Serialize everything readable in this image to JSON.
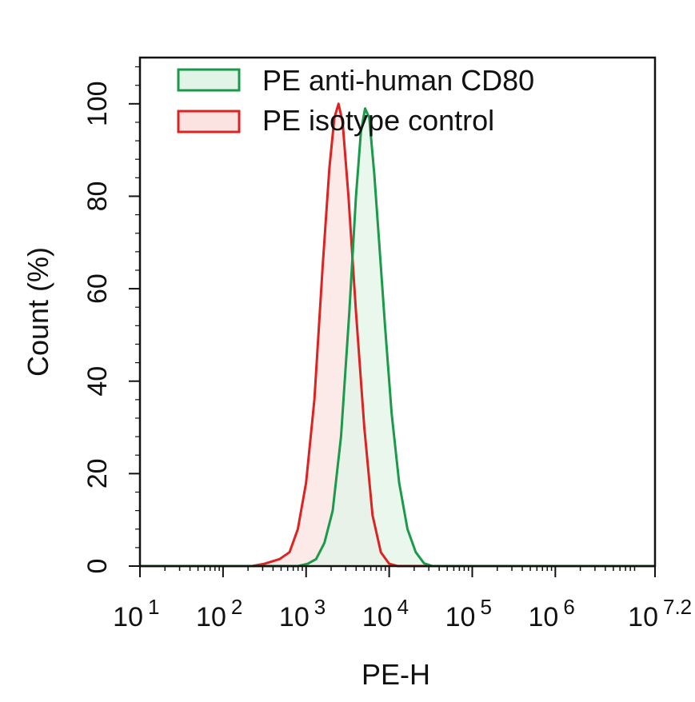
{
  "chart_data": {
    "type": "area",
    "title": "",
    "xlabel": "PE-H",
    "ylabel": "Count  (%)",
    "x_scale": "log10",
    "xlim": [
      1,
      7.2
    ],
    "ylim": [
      0,
      110
    ],
    "x_ticks": [
      {
        "base": "10",
        "exp": "1"
      },
      {
        "base": "10",
        "exp": "2"
      },
      {
        "base": "10",
        "exp": "3"
      },
      {
        "base": "10",
        "exp": "4"
      },
      {
        "base": "10",
        "exp": "5"
      },
      {
        "base": "10",
        "exp": "6"
      },
      {
        "base": "10",
        "exp": "7.2"
      }
    ],
    "y_ticks": [
      "0",
      "20",
      "40",
      "60",
      "80",
      "100"
    ],
    "grid": false,
    "legend_position": "top-left",
    "series": [
      {
        "name": "PE anti-human CD80",
        "color": "#1a9a4a",
        "fill": "#e1f4e7",
        "points": [
          [
            1,
            0
          ],
          [
            2.9,
            0
          ],
          [
            3.02,
            0.5
          ],
          [
            3.12,
            1.5
          ],
          [
            3.22,
            5
          ],
          [
            3.32,
            12
          ],
          [
            3.42,
            28
          ],
          [
            3.52,
            55
          ],
          [
            3.6,
            80
          ],
          [
            3.66,
            94
          ],
          [
            3.71,
            99
          ],
          [
            3.76,
            97
          ],
          [
            3.82,
            85
          ],
          [
            3.88,
            70
          ],
          [
            3.95,
            52
          ],
          [
            4.03,
            33
          ],
          [
            4.12,
            18
          ],
          [
            4.22,
            8
          ],
          [
            4.32,
            3
          ],
          [
            4.42,
            0.6
          ],
          [
            4.52,
            0
          ],
          [
            7.2,
            0
          ]
        ]
      },
      {
        "name": "PE isotype control",
        "color": "#dd2222",
        "fill": "#fbe3e1",
        "points": [
          [
            1,
            0
          ],
          [
            2.35,
            0
          ],
          [
            2.5,
            0.5
          ],
          [
            2.68,
            1.5
          ],
          [
            2.8,
            3
          ],
          [
            2.9,
            8
          ],
          [
            3.0,
            18
          ],
          [
            3.1,
            36
          ],
          [
            3.2,
            65
          ],
          [
            3.28,
            86
          ],
          [
            3.34,
            97
          ],
          [
            3.39,
            100
          ],
          [
            3.44,
            96
          ],
          [
            3.51,
            80
          ],
          [
            3.6,
            55
          ],
          [
            3.7,
            30
          ],
          [
            3.8,
            11
          ],
          [
            3.9,
            3
          ],
          [
            4.0,
            0.5
          ],
          [
            4.1,
            0
          ],
          [
            7.2,
            0
          ]
        ]
      }
    ]
  }
}
